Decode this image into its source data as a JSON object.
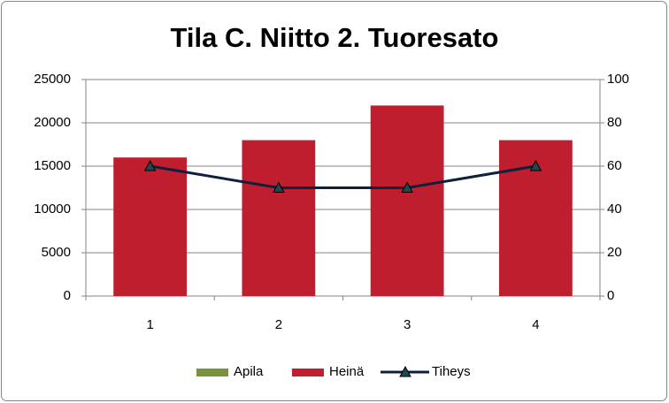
{
  "chart_data": {
    "type": "bar",
    "title": "Tila C. Niitto 2. Tuoresato",
    "categories": [
      "1",
      "2",
      "3",
      "4"
    ],
    "stacked": true,
    "series": [
      {
        "name": "Apila",
        "color": "#77933c",
        "values": [
          0,
          0,
          0,
          0
        ]
      },
      {
        "name": "Heinä",
        "color": "#be1e2d",
        "values": [
          16000,
          18000,
          22000,
          18000
        ]
      },
      {
        "name": "Tiheys",
        "color": "#0f203d",
        "type": "line",
        "axis": "y2",
        "values": [
          60,
          50,
          50,
          60
        ]
      }
    ],
    "ylim": [
      0,
      25000
    ],
    "yticks": [
      0,
      5000,
      10000,
      15000,
      20000,
      25000
    ],
    "y2lim": [
      0,
      100
    ],
    "y2ticks": [
      0,
      20,
      40,
      60,
      80,
      100
    ],
    "grid": true,
    "legend": "bottom"
  }
}
